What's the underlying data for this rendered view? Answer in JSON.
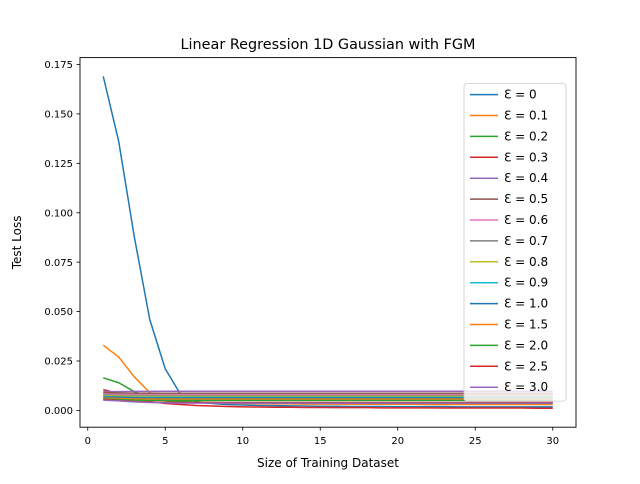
{
  "chart_data": {
    "type": "line",
    "title": "Linear Regression 1D Gaussian with FGM",
    "xlabel": "Size of Training Dataset",
    "ylabel": "Test Loss",
    "xlim": [
      -0.5,
      31.5
    ],
    "ylim": [
      -0.0085,
      0.1785
    ],
    "xticks": [
      0,
      5,
      10,
      15,
      20,
      25,
      30
    ],
    "xtick_labels": [
      "0",
      "5",
      "10",
      "15",
      "20",
      "25",
      "30"
    ],
    "yticks": [
      0.0,
      0.025,
      0.05,
      0.075,
      0.1,
      0.125,
      0.15,
      0.175
    ],
    "ytick_labels": [
      "0.000",
      "0.025",
      "0.050",
      "0.075",
      "0.100",
      "0.125",
      "0.150",
      "0.175"
    ],
    "grid": false,
    "legend_position": "upper-right",
    "x": [
      1,
      2,
      3,
      4,
      5,
      6,
      7,
      8,
      9,
      10,
      11,
      12,
      13,
      14,
      15,
      16,
      17,
      18,
      19,
      20,
      21,
      22,
      23,
      24,
      25,
      26,
      27,
      28,
      29,
      30
    ],
    "series": [
      {
        "name": "Ɛ = 0",
        "color": "#1f77b4",
        "values": [
          0.169,
          0.136,
          0.088,
          0.046,
          0.021,
          0.008,
          0.0045,
          0.0035,
          0.003,
          0.0027,
          0.0025,
          0.0024,
          0.0023,
          0.0022,
          0.0021,
          0.0021,
          0.002,
          0.002,
          0.002,
          0.0019,
          0.0019,
          0.0019,
          0.0019,
          0.0018,
          0.0018,
          0.0018,
          0.0018,
          0.0018,
          0.0018,
          0.0018
        ]
      },
      {
        "name": "Ɛ = 0.1",
        "color": "#ff7f0e",
        "values": [
          0.033,
          0.027,
          0.017,
          0.009,
          0.0055,
          0.0045,
          0.004,
          0.0038,
          0.0036,
          0.0035,
          0.0034,
          0.0033,
          0.0033,
          0.0032,
          0.0032,
          0.0032,
          0.0031,
          0.0031,
          0.0031,
          0.0031,
          0.0031,
          0.003,
          0.003,
          0.003,
          0.003,
          0.003,
          0.003,
          0.003,
          0.003,
          0.003
        ]
      },
      {
        "name": "Ɛ = 0.2",
        "color": "#2ca02c",
        "values": [
          0.0165,
          0.014,
          0.0095,
          0.0065,
          0.005,
          0.0045,
          0.0042,
          0.004,
          0.0039,
          0.0038,
          0.0038,
          0.0037,
          0.0037,
          0.0037,
          0.0037,
          0.0037,
          0.0037,
          0.0037,
          0.0037,
          0.0037,
          0.0037,
          0.0037,
          0.0037,
          0.0037,
          0.0037,
          0.0037,
          0.0037,
          0.0037,
          0.0037,
          0.0037
        ]
      },
      {
        "name": "Ɛ = 0.3",
        "color": "#d62728",
        "values": [
          0.0105,
          0.0085,
          0.006,
          0.0045,
          0.0035,
          0.003,
          0.0025,
          0.0022,
          0.002,
          0.0018,
          0.0017,
          0.0016,
          0.0016,
          0.0015,
          0.0015,
          0.0014,
          0.0014,
          0.0014,
          0.0013,
          0.0013,
          0.0013,
          0.0013,
          0.0012,
          0.0012,
          0.0012,
          0.0012,
          0.0012,
          0.0012,
          0.0011,
          0.0011
        ]
      },
      {
        "name": "Ɛ = 0.4",
        "color": "#9467bd",
        "values": [
          0.0095,
          0.0095,
          0.0096,
          0.0096,
          0.0097,
          0.0097,
          0.0097,
          0.0097,
          0.0097,
          0.0097,
          0.0097,
          0.0097,
          0.0097,
          0.0097,
          0.0097,
          0.0097,
          0.0097,
          0.0097,
          0.0097,
          0.0097,
          0.0097,
          0.0097,
          0.0097,
          0.0097,
          0.0097,
          0.0097,
          0.0097,
          0.0097,
          0.0097,
          0.0097
        ]
      },
      {
        "name": "Ɛ = 0.5",
        "color": "#8c564b",
        "values": [
          0.009,
          0.0088,
          0.0087,
          0.0087,
          0.0087,
          0.0087,
          0.0087,
          0.0087,
          0.0087,
          0.0087,
          0.0087,
          0.0087,
          0.0087,
          0.0087,
          0.0087,
          0.0087,
          0.0087,
          0.0087,
          0.0087,
          0.0087,
          0.0087,
          0.0087,
          0.0087,
          0.0087,
          0.0087,
          0.0087,
          0.0087,
          0.0087,
          0.0087,
          0.0087
        ]
      },
      {
        "name": "Ɛ = 0.6",
        "color": "#e377c2",
        "values": [
          0.0083,
          0.0081,
          0.008,
          0.008,
          0.008,
          0.008,
          0.008,
          0.008,
          0.008,
          0.008,
          0.008,
          0.008,
          0.008,
          0.008,
          0.008,
          0.008,
          0.008,
          0.008,
          0.008,
          0.008,
          0.008,
          0.008,
          0.008,
          0.008,
          0.008,
          0.008,
          0.008,
          0.008,
          0.008,
          0.008
        ]
      },
      {
        "name": "Ɛ = 0.7",
        "color": "#7f7f7f",
        "values": [
          0.0078,
          0.0076,
          0.0075,
          0.0075,
          0.0075,
          0.0075,
          0.0075,
          0.0075,
          0.0075,
          0.0075,
          0.0075,
          0.0075,
          0.0075,
          0.0075,
          0.0075,
          0.0075,
          0.0075,
          0.0075,
          0.0075,
          0.0075,
          0.0075,
          0.0075,
          0.0075,
          0.0075,
          0.0075,
          0.0075,
          0.0075,
          0.0075,
          0.0075,
          0.0075
        ]
      },
      {
        "name": "Ɛ = 0.8",
        "color": "#bcbd22",
        "values": [
          0.0074,
          0.0072,
          0.0071,
          0.0071,
          0.0071,
          0.0071,
          0.0071,
          0.0071,
          0.0071,
          0.0071,
          0.0071,
          0.0071,
          0.0071,
          0.0071,
          0.0071,
          0.0071,
          0.0071,
          0.0071,
          0.0071,
          0.0071,
          0.0071,
          0.0071,
          0.0071,
          0.0071,
          0.0071,
          0.0071,
          0.0071,
          0.0071,
          0.0071,
          0.0071
        ]
      },
      {
        "name": "Ɛ = 0.9",
        "color": "#17becf",
        "values": [
          0.007,
          0.0068,
          0.0066,
          0.0066,
          0.0066,
          0.0066,
          0.0066,
          0.0066,
          0.0066,
          0.0066,
          0.0066,
          0.0066,
          0.0066,
          0.0066,
          0.0066,
          0.0066,
          0.0066,
          0.0066,
          0.0066,
          0.0066,
          0.0066,
          0.0066,
          0.0066,
          0.0066,
          0.0066,
          0.0066,
          0.0066,
          0.0066,
          0.0066,
          0.0066
        ]
      },
      {
        "name": "Ɛ = 1.0",
        "color": "#1f77b4",
        "values": [
          0.0068,
          0.0066,
          0.0064,
          0.0063,
          0.0063,
          0.0063,
          0.0063,
          0.0063,
          0.0063,
          0.0063,
          0.0063,
          0.0063,
          0.0063,
          0.0063,
          0.0063,
          0.0063,
          0.0063,
          0.0063,
          0.0063,
          0.0063,
          0.0063,
          0.0063,
          0.0063,
          0.0063,
          0.0063,
          0.0063,
          0.0063,
          0.0063,
          0.0063,
          0.0063
        ]
      },
      {
        "name": "Ɛ = 1.5",
        "color": "#ff7f0e",
        "values": [
          0.0062,
          0.006,
          0.0058,
          0.0057,
          0.0057,
          0.0057,
          0.0057,
          0.0057,
          0.0057,
          0.0057,
          0.0057,
          0.0057,
          0.0057,
          0.0057,
          0.0057,
          0.0057,
          0.0057,
          0.0057,
          0.0057,
          0.0057,
          0.0057,
          0.0057,
          0.0057,
          0.0057,
          0.0057,
          0.0057,
          0.0057,
          0.0057,
          0.0057,
          0.0057
        ]
      },
      {
        "name": "Ɛ = 2.0",
        "color": "#2ca02c",
        "values": [
          0.0058,
          0.0055,
          0.0052,
          0.0051,
          0.0051,
          0.0051,
          0.0051,
          0.0051,
          0.0051,
          0.0051,
          0.0051,
          0.0051,
          0.0051,
          0.0051,
          0.0051,
          0.0051,
          0.0051,
          0.0051,
          0.0051,
          0.0051,
          0.0051,
          0.0051,
          0.0051,
          0.0051,
          0.0051,
          0.0051,
          0.0051,
          0.0051,
          0.0051,
          0.0051
        ]
      },
      {
        "name": "Ɛ = 2.5",
        "color": "#d62728",
        "values": [
          0.0055,
          0.005,
          0.0045,
          0.0042,
          0.0041,
          0.004,
          0.004,
          0.004,
          0.004,
          0.004,
          0.004,
          0.004,
          0.004,
          0.004,
          0.004,
          0.004,
          0.004,
          0.004,
          0.004,
          0.004,
          0.004,
          0.004,
          0.004,
          0.004,
          0.004,
          0.004,
          0.004,
          0.004,
          0.004,
          0.004
        ]
      },
      {
        "name": "Ɛ = 3.0",
        "color": "#9467bd",
        "values": [
          0.0052,
          0.0048,
          0.0043,
          0.004,
          0.0038,
          0.0037,
          0.0037,
          0.0037,
          0.0037,
          0.0037,
          0.0037,
          0.0037,
          0.0037,
          0.0037,
          0.0037,
          0.0037,
          0.0037,
          0.0037,
          0.0037,
          0.0037,
          0.0037,
          0.0037,
          0.0037,
          0.0037,
          0.0037,
          0.0037,
          0.0037,
          0.0037,
          0.0037,
          0.0037
        ]
      }
    ]
  }
}
